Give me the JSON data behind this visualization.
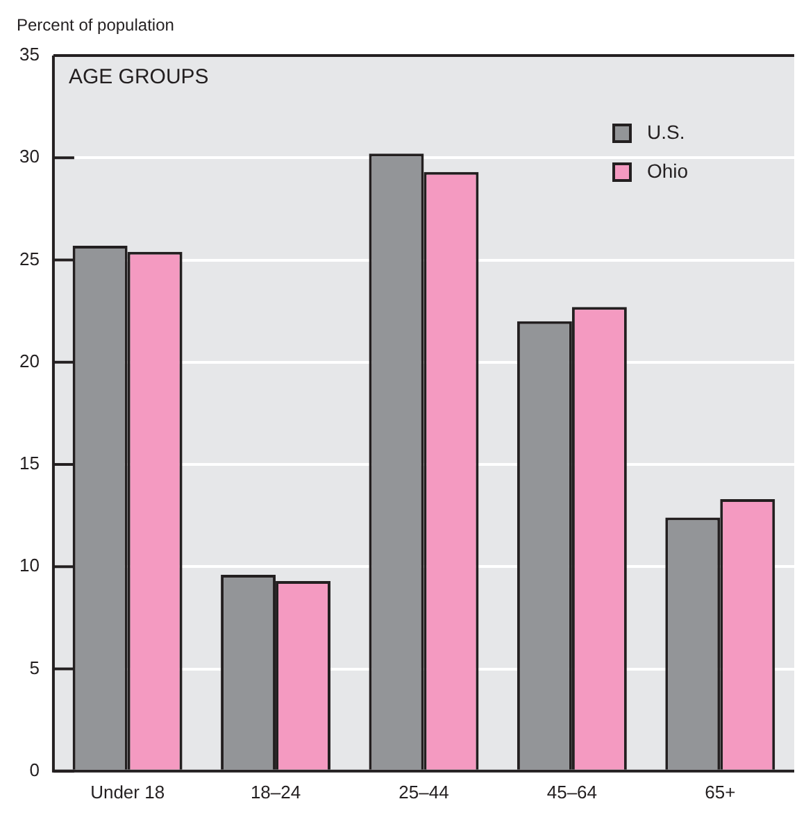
{
  "chart_data": {
    "type": "bar",
    "title": "AGE GROUPS",
    "ylabel": "Percent of population",
    "categories": [
      "Under 18",
      "18–24",
      "25–44",
      "45–64",
      "65+"
    ],
    "series": [
      {
        "name": "U.S.",
        "color": "#939598",
        "values": [
          25.7,
          9.6,
          30.2,
          22.0,
          12.4
        ]
      },
      {
        "name": "Ohio",
        "color": "#f49ac1",
        "values": [
          25.4,
          9.3,
          29.3,
          22.7,
          13.3
        ]
      }
    ],
    "ylim": [
      0,
      35
    ],
    "yticks": [
      0,
      5,
      10,
      15,
      20,
      25,
      30,
      35
    ],
    "grid": "y",
    "legend": "top right"
  }
}
